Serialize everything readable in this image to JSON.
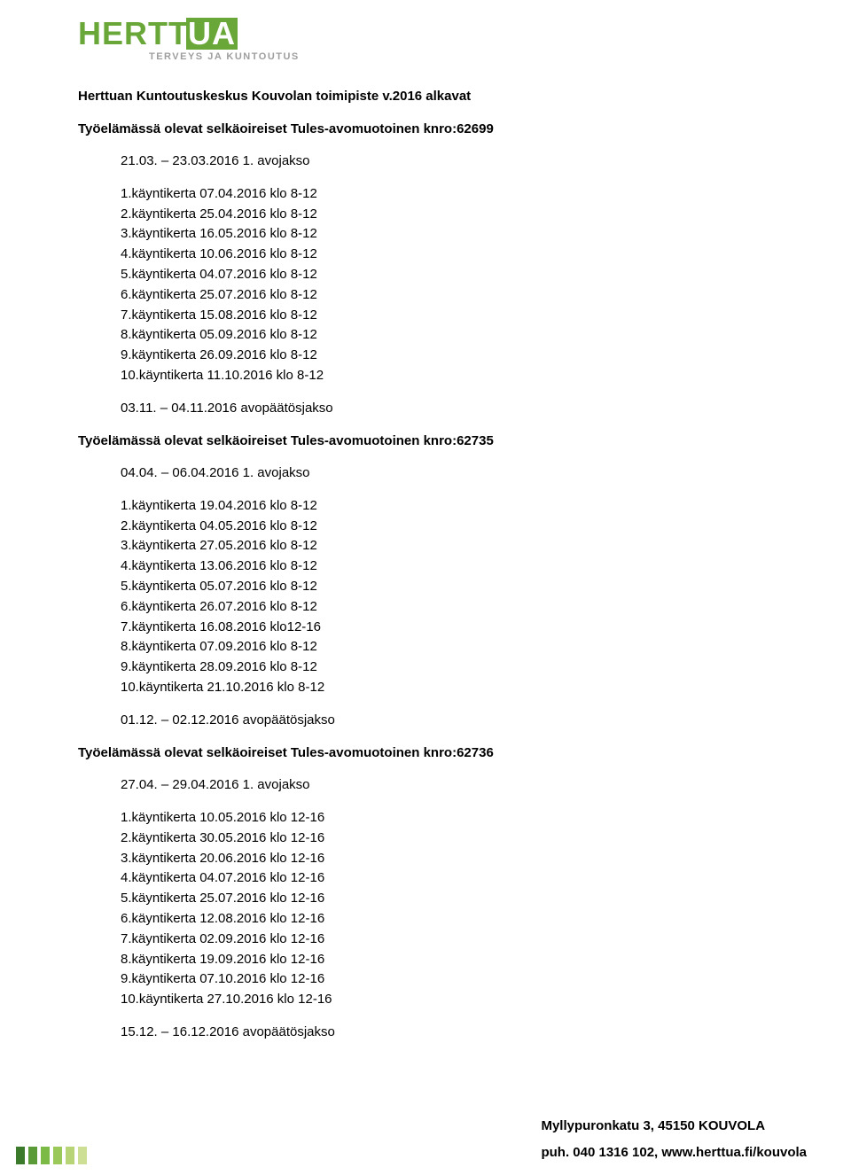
{
  "logo": {
    "name_part1": "HERTT",
    "name_part2": "UA",
    "subtitle": "TERVEYS JA KUNTOUTUS"
  },
  "main_title": "Herttuan Kuntoutuskeskus Kouvolan toimipiste v.2016 alkavat",
  "sections": [
    {
      "heading": "Työelämässä olevat selkäoireiset Tules-avomuotoinen knro:62699",
      "phase": "21.03. – 23.03.2016 1. avojakso",
      "visits": [
        "1.käyntikerta 07.04.2016 klo 8-12",
        "2.käyntikerta 25.04.2016 klo 8-12",
        "3.käyntikerta 16.05.2016 klo 8-12",
        "4.käyntikerta 10.06.2016 klo 8-12",
        "5.käyntikerta 04.07.2016 klo 8-12",
        "6.käyntikerta 25.07.2016 klo 8-12",
        "7.käyntikerta 15.08.2016 klo 8-12",
        "8.käyntikerta 05.09.2016 klo 8-12",
        "9.käyntikerta 26.09.2016 klo 8-12",
        "10.käyntikerta 11.10.2016 klo 8-12"
      ],
      "closing": "03.11. – 04.11.2016 avopäätösjakso"
    },
    {
      "heading": "Työelämässä olevat selkäoireiset Tules-avomuotoinen knro:62735",
      "phase": "04.04. – 06.04.2016 1. avojakso",
      "visits": [
        "1.käyntikerta 19.04.2016 klo 8-12",
        "2.käyntikerta 04.05.2016 klo 8-12",
        "3.käyntikerta 27.05.2016 klo 8-12",
        "4.käyntikerta 13.06.2016 klo 8-12",
        "5.käyntikerta 05.07.2016 klo 8-12",
        "6.käyntikerta 26.07.2016 klo 8-12",
        "7.käyntikerta 16.08.2016 klo12-16",
        "8.käyntikerta 07.09.2016 klo 8-12",
        "9.käyntikerta 28.09.2016 klo 8-12",
        "10.käyntikerta 21.10.2016 klo 8-12"
      ],
      "closing": "01.12. – 02.12.2016 avopäätösjakso"
    },
    {
      "heading": "Työelämässä olevat selkäoireiset Tules-avomuotoinen knro:62736",
      "phase": "27.04. – 29.04.2016 1. avojakso",
      "visits": [
        "1.käyntikerta 10.05.2016 klo 12-16",
        "2.käyntikerta 30.05.2016 klo 12-16",
        "3.käyntikerta 20.06.2016 klo 12-16",
        "4.käyntikerta 04.07.2016 klo 12-16",
        "5.käyntikerta 25.07.2016 klo 12-16",
        "6.käyntikerta 12.08.2016 klo 12-16",
        "7.käyntikerta 02.09.2016 klo 12-16",
        "8.käyntikerta 19.09.2016 klo 12-16",
        "9.käyntikerta 07.10.2016 klo 12-16",
        "10.käyntikerta 27.10.2016 klo 12-16"
      ],
      "closing": "15.12. – 16.12.2016 avopäätösjakso"
    }
  ],
  "footer": {
    "address": "Myllypuronkatu 3, 45150  KOUVOLA",
    "contact": "puh. 040 1316 102, www.herttua.fi/kouvola"
  },
  "colors": {
    "brand_green": "#6aa739",
    "sub_gray": "#9e9e9e",
    "text": "#000000",
    "background": "#ffffff"
  }
}
